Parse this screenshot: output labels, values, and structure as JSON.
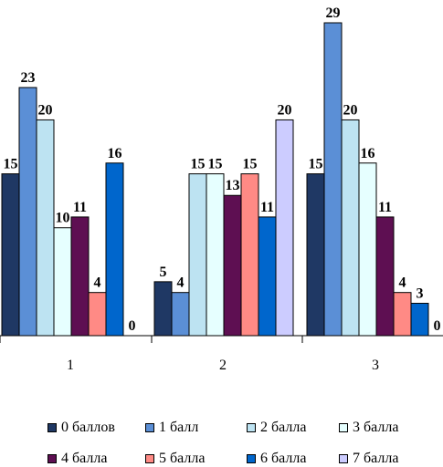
{
  "chart_data": {
    "type": "bar",
    "categories": [
      "1",
      "2",
      "3"
    ],
    "series": [
      {
        "name": "0 баллов",
        "color": "#1F3864",
        "values": [
          15,
          5,
          15
        ]
      },
      {
        "name": "1 балл",
        "color": "#5B8FD6",
        "values": [
          23,
          4,
          29
        ]
      },
      {
        "name": "2 балла",
        "color": "#BDE3F2",
        "values": [
          20,
          15,
          20
        ]
      },
      {
        "name": "3 балла",
        "color": "#E6FFFF",
        "values": [
          10,
          15,
          16
        ]
      },
      {
        "name": "4 балла",
        "color": "#5E0F52",
        "values": [
          11,
          13,
          11
        ]
      },
      {
        "name": "5 балла",
        "color": "#FF8A85",
        "values": [
          4,
          15,
          4
        ]
      },
      {
        "name": "6 балла",
        "color": "#0066CC",
        "values": [
          16,
          11,
          3
        ]
      },
      {
        "name": "7 балла",
        "color": "#CCCCFF",
        "values": [
          0,
          20,
          0
        ]
      }
    ],
    "ylim": [
      0,
      29
    ],
    "grid": false,
    "legend_position": "bottom"
  }
}
